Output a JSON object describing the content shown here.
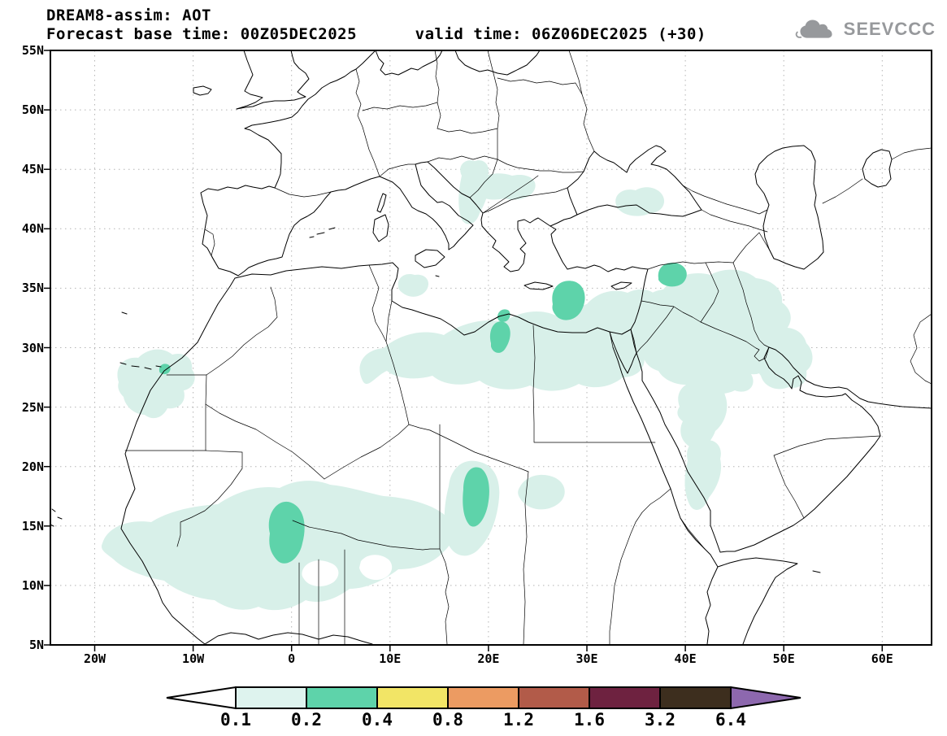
{
  "header": {
    "title": "DREAM8-assim: AOT",
    "subtitle": "Forecast base time: 00Z05DEC2025      valid time: 06Z06DEC2025 (+30)"
  },
  "logo": {
    "text": "SEEVCCC",
    "icon": "cloud-icon",
    "color": "#97999c"
  },
  "axes": {
    "lat_labels": [
      "55N",
      "50N",
      "45N",
      "40N",
      "35N",
      "30N",
      "25N",
      "20N",
      "15N",
      "10N",
      "5N"
    ],
    "lon_labels": [
      "20W",
      "10W",
      "0",
      "10E",
      "20E",
      "30E",
      "40E",
      "50E",
      "60E"
    ]
  },
  "colorbar": {
    "tick_labels": [
      "0.1",
      "0.2",
      "0.4",
      "0.8",
      "1.2",
      "1.6",
      "3.2",
      "6.4"
    ],
    "segment_colors": [
      "#ffffff",
      "#def3ee",
      "#5ed3aa",
      "#f2e566",
      "#ec9b62",
      "#b25b49",
      "#6e2240",
      "#3d2e1e",
      "#8d68ae"
    ],
    "outline_color": "#000000"
  },
  "map": {
    "fill_light": "#d8f0e9",
    "fill_core": "#5ed3aa",
    "hole_fill": "#ffffff",
    "grid_color": "#b4b4b4",
    "line_color": "#000000",
    "frame_color": "#000000"
  },
  "chart_data": {
    "type": "heatmap",
    "subtype": "filled-contour-map",
    "model": "DREAM8-assim",
    "variable": "AOT (aerosol optical thickness)",
    "forecast_base_time": "00Z05DEC2025",
    "valid_time": "06Z06DEC2025",
    "forecast_hour": "+30",
    "projection": "lat-lon",
    "lon_range_deg": [
      -25,
      65
    ],
    "lat_range_deg": [
      5,
      55
    ],
    "grid_interval_deg": {
      "lat": 5,
      "lon": 10
    },
    "contour_levels": [
      0.1,
      0.2,
      0.4,
      0.8,
      1.2,
      1.6,
      3.2,
      6.4
    ],
    "max_shaded_level_on_map": 0.4,
    "shaded_regions": [
      {
        "area": "West African Sahel (Senegal to Niger)",
        "lon": [
          -18,
          14
        ],
        "lat": [
          7,
          17
        ],
        "aot": "0.1-0.2",
        "core": {
          "aot": "0.2-0.4",
          "near": "0E,15N"
        }
      },
      {
        "area": "Chad / Bodele depression",
        "lon": [
          14,
          19
        ],
        "lat": [
          9,
          19
        ],
        "aot": "0.1-0.2",
        "core": {
          "aot": "0.2-0.4",
          "near": "17E,16N"
        }
      },
      {
        "area": "Central Libya - Egypt - eastern Mediterranean",
        "lon": [
          7,
          34
        ],
        "lat": [
          27,
          36
        ],
        "aot": "0.1-0.2",
        "core": {
          "aot": "0.2-0.4",
          "near": "21E,31N and 27E,34N"
        }
      },
      {
        "area": "Syria - Iraq - northern Saudi Arabia",
        "lon": [
          35,
          50
        ],
        "lat": [
          26,
          37
        ],
        "aot": "0.1-0.2",
        "core": {
          "aot": "0.2-0.4",
          "near": "38E,36N"
        }
      },
      {
        "area": "Persian Gulf",
        "lon": [
          47,
          53
        ],
        "lat": [
          24,
          30
        ],
        "aot": "0.1-0.2"
      },
      {
        "area": "Moroccan Atlantic coast",
        "lon": [
          -18,
          -10
        ],
        "lat": [
          22,
          29
        ],
        "aot": "0.1-0.2",
        "core": {
          "aot": "0.2-0.4",
          "near": "13W,28N"
        }
      },
      {
        "area": "Adriatic / Balkans streaks",
        "lon": [
          16,
          26
        ],
        "lat": [
          38,
          45
        ],
        "aot": "0.1-0.2"
      },
      {
        "area": "Eastern Anatolia",
        "lon": [
          33,
          39
        ],
        "lat": [
          38,
          41
        ],
        "aot": "0.1-0.2"
      },
      {
        "area": "Red Sea / western Saudi Arabia",
        "lon": [
          36,
          41
        ],
        "lat": [
          14,
          25
        ],
        "aot": "0.1-0.2"
      }
    ]
  }
}
